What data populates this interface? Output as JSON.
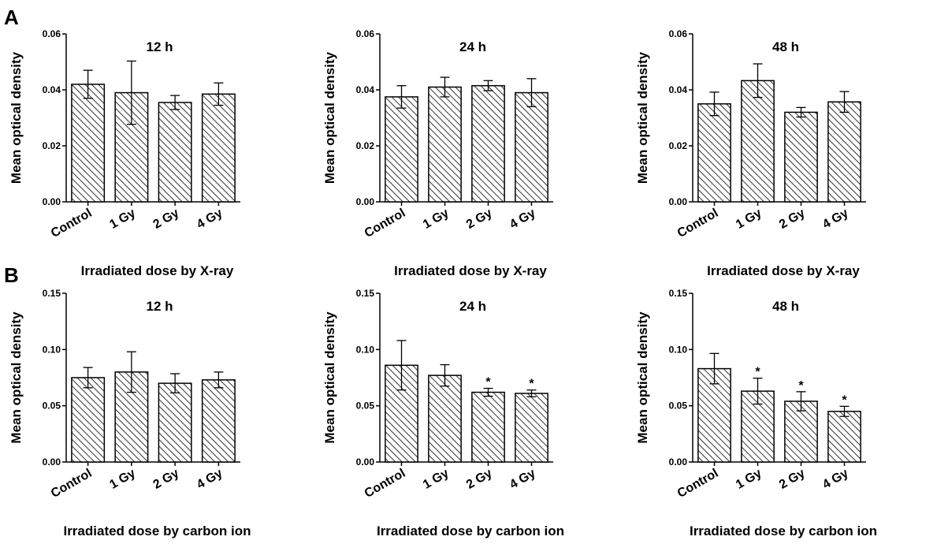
{
  "panel_labels": [
    "A",
    "B"
  ],
  "chart_data": [
    {
      "type": "bar",
      "panel": "A",
      "title": "12 h",
      "categories": [
        "Control",
        "1 Gy",
        "2 Gy",
        "4 Gy"
      ],
      "values": [
        0.042,
        0.039,
        0.0355,
        0.0385
      ],
      "errors": [
        0.005,
        0.0113,
        0.0025,
        0.004
      ],
      "significance": [
        "",
        "",
        "",
        ""
      ],
      "xlabel": "Irradiated dose by X-ray",
      "ylabel": "Mean optical density",
      "ylim": [
        0,
        0.06
      ],
      "yticks": [
        "0.00",
        "0.02",
        "0.04",
        "0.06"
      ],
      "ytick_values": [
        0,
        0.02,
        0.04,
        0.06
      ],
      "bar_pattern": "diagonal-hatch",
      "grid": false
    },
    {
      "type": "bar",
      "panel": "A",
      "title": "24 h",
      "categories": [
        "Control",
        "1 Gy",
        "2 Gy",
        "4 Gy"
      ],
      "values": [
        0.0375,
        0.041,
        0.0415,
        0.039
      ],
      "errors": [
        0.004,
        0.0035,
        0.0018,
        0.005
      ],
      "significance": [
        "",
        "",
        "",
        ""
      ],
      "xlabel": "Irradiated dose by X-ray",
      "ylabel": "Mean optical density",
      "ylim": [
        0,
        0.06
      ],
      "yticks": [
        "0.00",
        "0.02",
        "0.04",
        "0.06"
      ],
      "ytick_values": [
        0,
        0.02,
        0.04,
        0.06
      ],
      "bar_pattern": "diagonal-hatch",
      "grid": false
    },
    {
      "type": "bar",
      "panel": "A",
      "title": "48 h",
      "categories": [
        "Control",
        "1 Gy",
        "2 Gy",
        "4 Gy"
      ],
      "values": [
        0.035,
        0.0433,
        0.032,
        0.0357
      ],
      "errors": [
        0.0042,
        0.006,
        0.0017,
        0.0037
      ],
      "significance": [
        "",
        "",
        "",
        ""
      ],
      "xlabel": "Irradiated dose by X-ray",
      "ylabel": "Mean optical density",
      "ylim": [
        0,
        0.06
      ],
      "yticks": [
        "0.00",
        "0.02",
        "0.04",
        "0.06"
      ],
      "ytick_values": [
        0,
        0.02,
        0.04,
        0.06
      ],
      "bar_pattern": "diagonal-hatch",
      "grid": false
    },
    {
      "type": "bar",
      "panel": "B",
      "title": "12 h",
      "categories": [
        "Control",
        "1 Gy",
        "2 Gy",
        "4 Gy"
      ],
      "values": [
        0.075,
        0.08,
        0.07,
        0.073
      ],
      "errors": [
        0.009,
        0.018,
        0.0085,
        0.007
      ],
      "significance": [
        "",
        "",
        "",
        ""
      ],
      "xlabel": "Irradiated dose by carbon ion",
      "ylabel": "Mean optical density",
      "ylim": [
        0,
        0.15
      ],
      "yticks": [
        "0.00",
        "0.05",
        "0.10",
        "0.15"
      ],
      "ytick_values": [
        0,
        0.05,
        0.1,
        0.15
      ],
      "bar_pattern": "diagonal-hatch",
      "grid": false
    },
    {
      "type": "bar",
      "panel": "B",
      "title": "24 h",
      "categories": [
        "Control",
        "1 Gy",
        "2 Gy",
        "4 Gy"
      ],
      "values": [
        0.086,
        0.077,
        0.062,
        0.061
      ],
      "errors": [
        0.022,
        0.0095,
        0.0035,
        0.003
      ],
      "significance": [
        "",
        "",
        "*",
        "*"
      ],
      "xlabel": "Irradiated dose by carbon ion",
      "ylabel": "Mean optical density",
      "ylim": [
        0,
        0.15
      ],
      "yticks": [
        "0.00",
        "0.05",
        "0.10",
        "0.15"
      ],
      "ytick_values": [
        0,
        0.05,
        0.1,
        0.15
      ],
      "bar_pattern": "diagonal-hatch",
      "grid": false
    },
    {
      "type": "bar",
      "panel": "B",
      "title": "48 h",
      "categories": [
        "Control",
        "1 Gy",
        "2 Gy",
        "4 Gy"
      ],
      "values": [
        0.083,
        0.063,
        0.054,
        0.045
      ],
      "errors": [
        0.0135,
        0.0115,
        0.0085,
        0.0045
      ],
      "significance": [
        "",
        "*",
        "*",
        "*"
      ],
      "xlabel": "Irradiated dose by carbon ion",
      "ylabel": "Mean optical density",
      "ylim": [
        0,
        0.15
      ],
      "yticks": [
        "0.00",
        "0.05",
        "0.10",
        "0.15"
      ],
      "ytick_values": [
        0,
        0.05,
        0.1,
        0.15
      ],
      "bar_pattern": "diagonal-hatch",
      "grid": false
    }
  ]
}
